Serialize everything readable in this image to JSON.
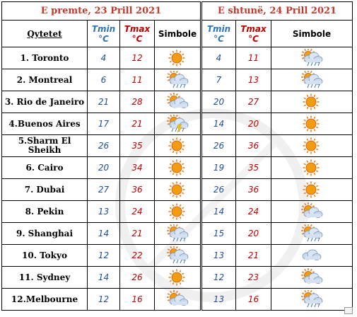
{
  "header": {
    "day1": "E premte, 23 Prill 2021",
    "day2": "E shtunë, 24 Prill 2021"
  },
  "columns": {
    "city": "Qytetet",
    "tmin_line1": "Tmin",
    "tmin_line2": "°C",
    "tmax_line1": "Tmax",
    "tmax_line2": "°C",
    "symbol": "Simbole"
  },
  "rows": [
    {
      "city": "1. Toronto",
      "d1_min": "4",
      "d1_max": "12",
      "d1_icon": "sun-icon",
      "d2_min": "4",
      "d2_max": "11",
      "d2_icon": "sun-cloud-rain-icon"
    },
    {
      "city": "2. Montreal",
      "d1_min": "6",
      "d1_max": "11",
      "d1_icon": "sun-cloud-rain-icon",
      "d2_min": "7",
      "d2_max": "13",
      "d2_icon": "sun-cloud-rain-icon"
    },
    {
      "city": "3. Rio de Janeiro",
      "d1_min": "21",
      "d1_max": "28",
      "d1_icon": "sun-cloud-icon",
      "d2_min": "20",
      "d2_max": "27",
      "d2_icon": "sun-icon"
    },
    {
      "city": "4.Buenos Aires",
      "d1_min": "17",
      "d1_max": "21",
      "d1_icon": "sun-cloud-storm-icon",
      "d2_min": "14",
      "d2_max": "20",
      "d2_icon": "sun-icon"
    },
    {
      "city": "5.Sharm El Sheikh",
      "d1_min": "26",
      "d1_max": "35",
      "d1_icon": "sun-icon",
      "d2_min": "26",
      "d2_max": "36",
      "d2_icon": "sun-icon"
    },
    {
      "city": "6. Cairo",
      "d1_min": "20",
      "d1_max": "34",
      "d1_icon": "sun-icon",
      "d2_min": "19",
      "d2_max": "35",
      "d2_icon": "sun-icon"
    },
    {
      "city": "7. Dubai",
      "d1_min": "27",
      "d1_max": "36",
      "d1_icon": "sun-icon",
      "d2_min": "26",
      "d2_max": "36",
      "d2_icon": "sun-icon"
    },
    {
      "city": "8. Pekin",
      "d1_min": "13",
      "d1_max": "24",
      "d1_icon": "sun-icon",
      "d2_min": "14",
      "d2_max": "24",
      "d2_icon": "sun-cloud-icon"
    },
    {
      "city": "9. Shanghai",
      "d1_min": "14",
      "d1_max": "21",
      "d1_icon": "sun-cloud-rain-icon",
      "d2_min": "15",
      "d2_max": "20",
      "d2_icon": "sun-cloud-rain-icon"
    },
    {
      "city": "10. Tokyo",
      "d1_min": "12",
      "d1_max": "22",
      "d1_icon": "sun-cloud-rain-icon",
      "d2_min": "13",
      "d2_max": "21",
      "d2_icon": "cloud-icon"
    },
    {
      "city": "11. Sydney",
      "d1_min": "14",
      "d1_max": "26",
      "d1_icon": "sun-icon",
      "d2_min": "12",
      "d2_max": "23",
      "d2_icon": "sun-cloud-icon"
    },
    {
      "city": "12.Melbourne",
      "d1_min": "12",
      "d1_max": "16",
      "d1_icon": "sun-cloud-icon",
      "d2_min": "13",
      "d2_max": "16",
      "d2_icon": "sun-cloud-rain-icon"
    }
  ],
  "colors": {
    "header_red": "#c0392b",
    "tmin_blue": "#2e75b6",
    "tmax_red": "#c00000",
    "sun_orange": "#f39c12",
    "cloud_blue": "#b9cfe8"
  }
}
